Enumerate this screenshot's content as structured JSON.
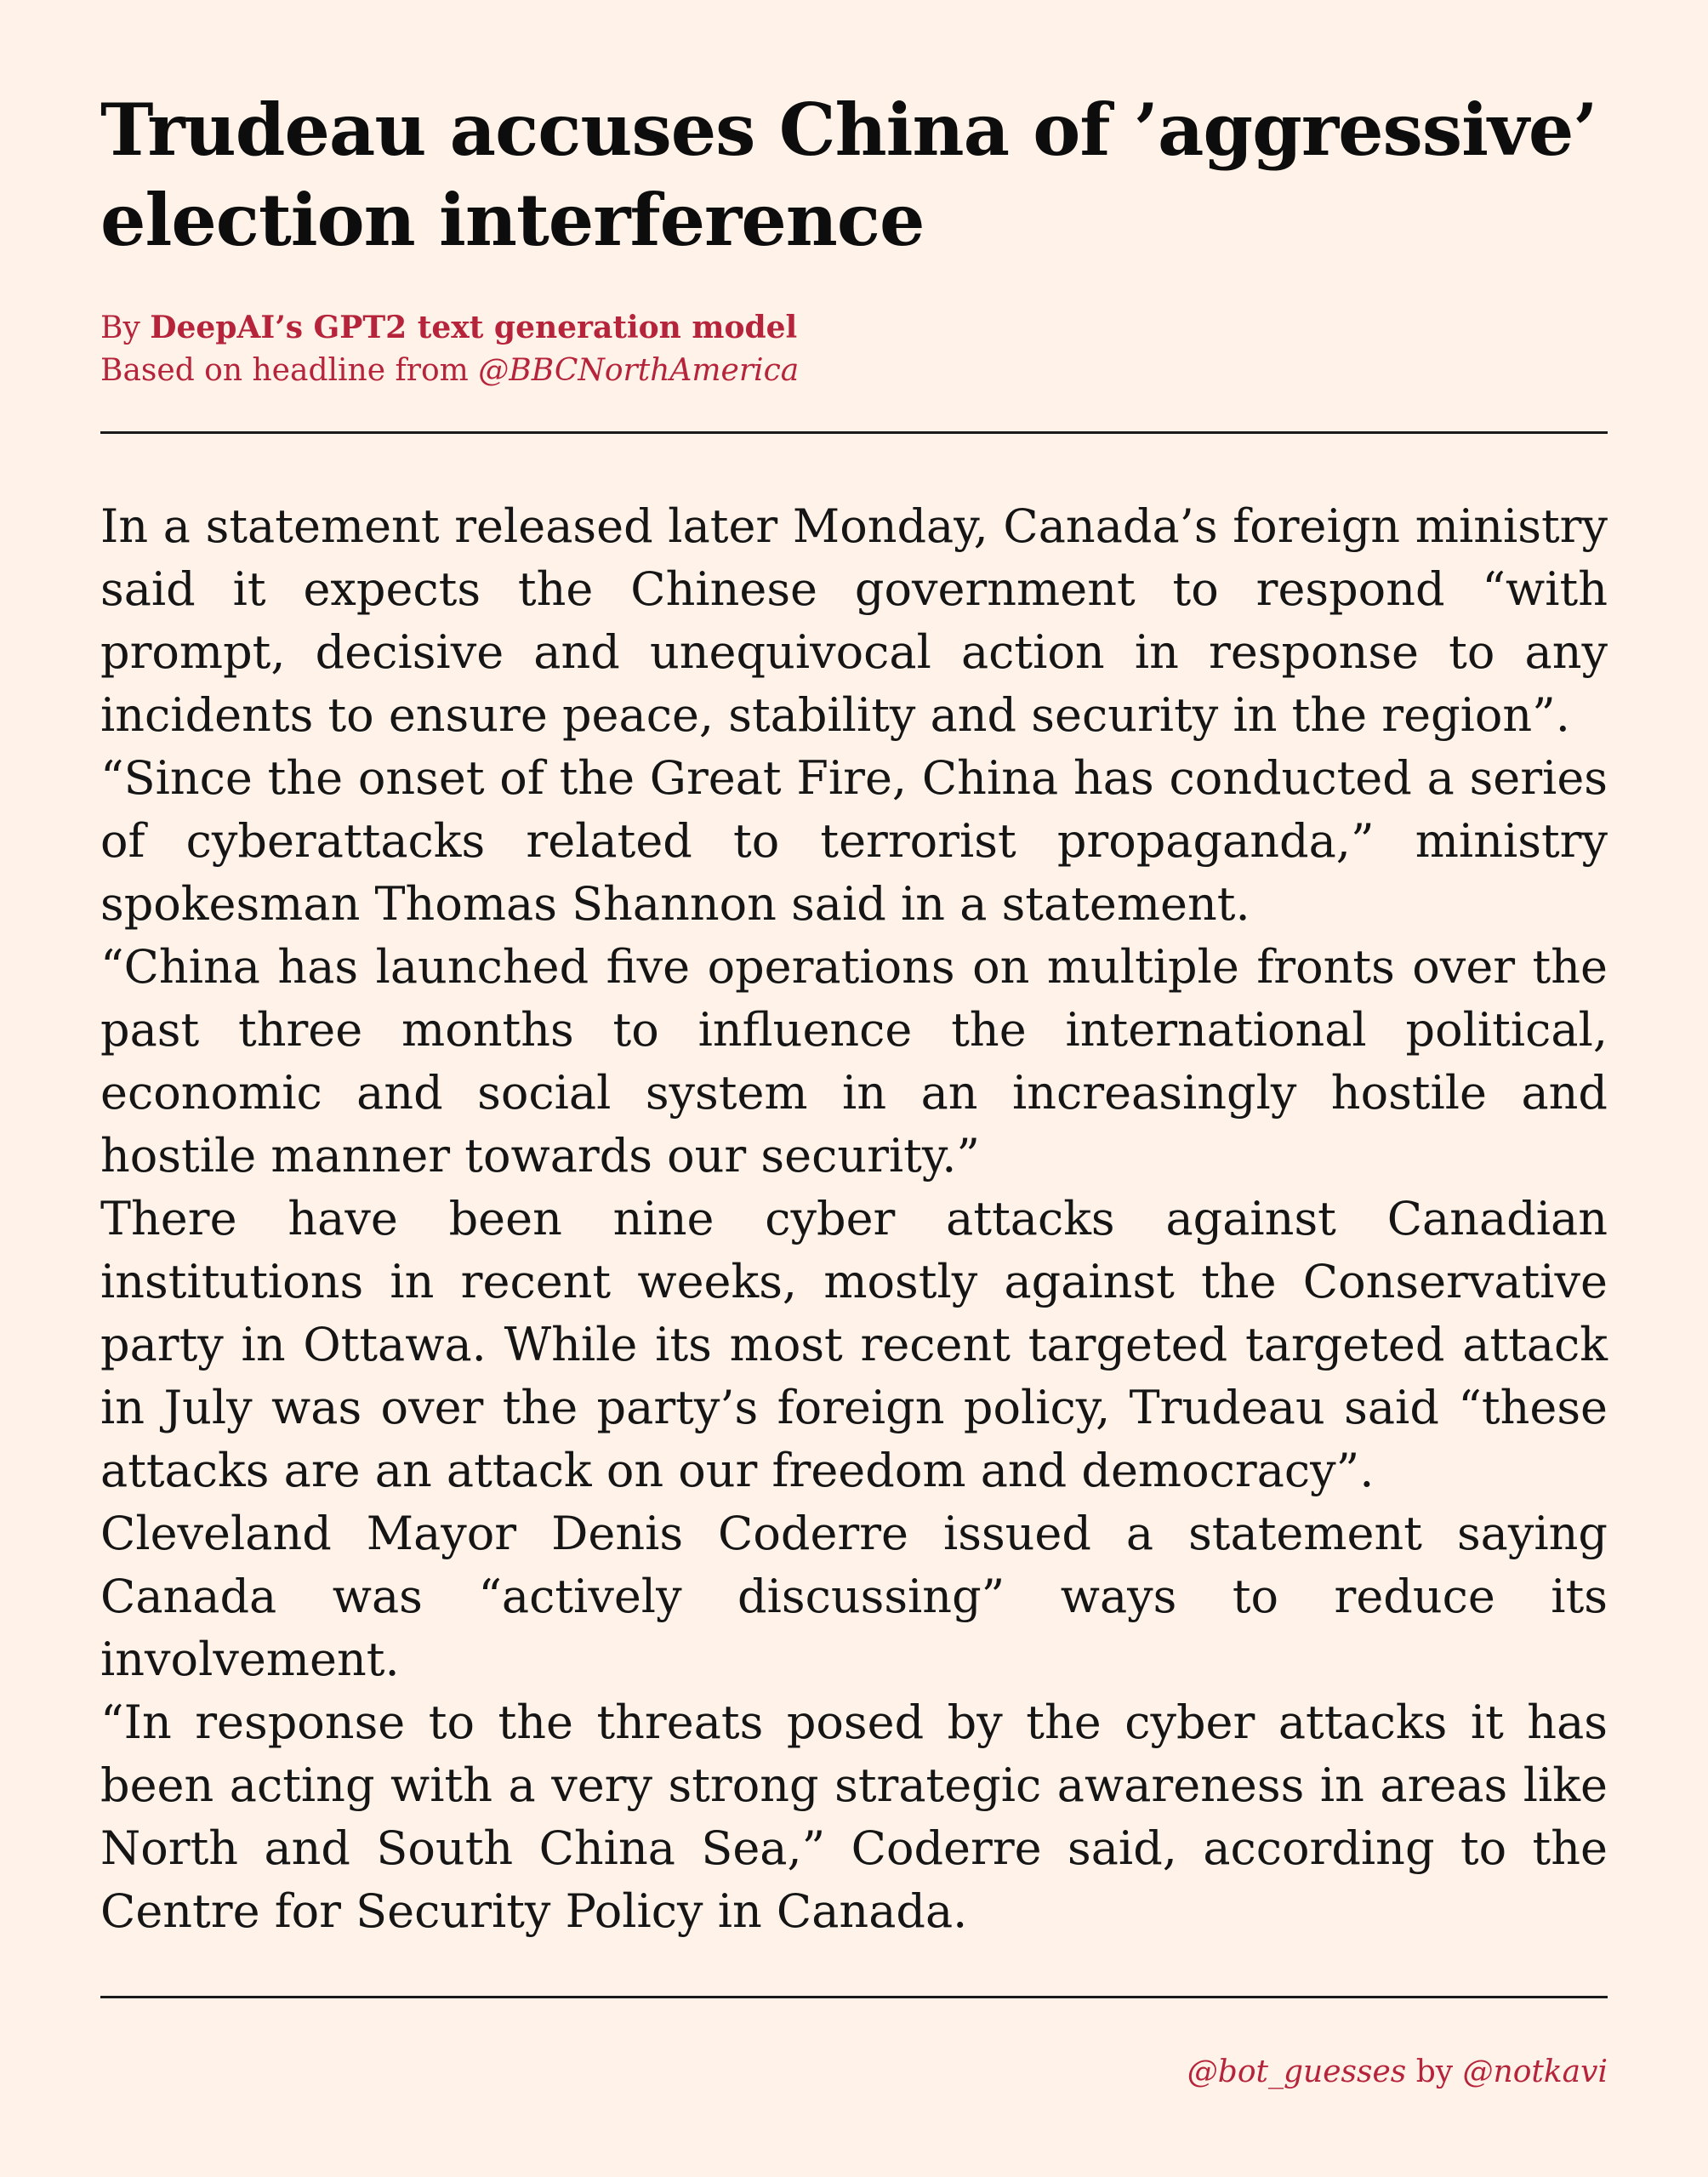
{
  "headline": "Trudeau accuses China of ’aggressive’ election interference",
  "byline": {
    "prefix": "By",
    "author": "DeepAI’s GPT2 text generation model",
    "source_prefix": "Based on headline from",
    "source_handle": "@BBCNorthAmerica"
  },
  "article": {
    "paragraphs": [
      "In a statement released later Monday, Canada’s foreign ministry said it expects the Chinese government to respond “with prompt, decisive and unequivocal action in response to any incidents to ensure peace, stability and security in the region”.",
      "“Since the onset of the Great Fire, China has conducted a series of cyberattacks related to terrorist propaganda,” ministry spokesman Thomas Shannon said in a statement.",
      "“China has launched five operations on multiple fronts over the past three months to influence the international political, economic and social system in an increasingly hostile and hostile manner towards our security.”",
      "There have been nine cyber attacks against Canadian institutions in recent weeks, mostly against the Conservative party in Ottawa. While its most recent targeted targeted attack in July was over the party’s foreign policy, Trudeau said “these attacks are an attack on our freedom and democracy”.",
      "Cleveland Mayor Denis Coderre issued a statement saying Canada was “actively discussing” ways to reduce its involvement.",
      "“In response to the threats posed by the cyber attacks it has been acting with a very strong strategic awareness in areas like North and South China Sea,” Coderre said, according to the Centre for Security Policy in Canada."
    ]
  },
  "footer": {
    "bot_handle": "@bot_guesses",
    "by": "by",
    "author_handle": "@notkavi"
  },
  "colors": {
    "background": "#fff2e8",
    "accent": "#b5243a",
    "text": "#111111"
  }
}
